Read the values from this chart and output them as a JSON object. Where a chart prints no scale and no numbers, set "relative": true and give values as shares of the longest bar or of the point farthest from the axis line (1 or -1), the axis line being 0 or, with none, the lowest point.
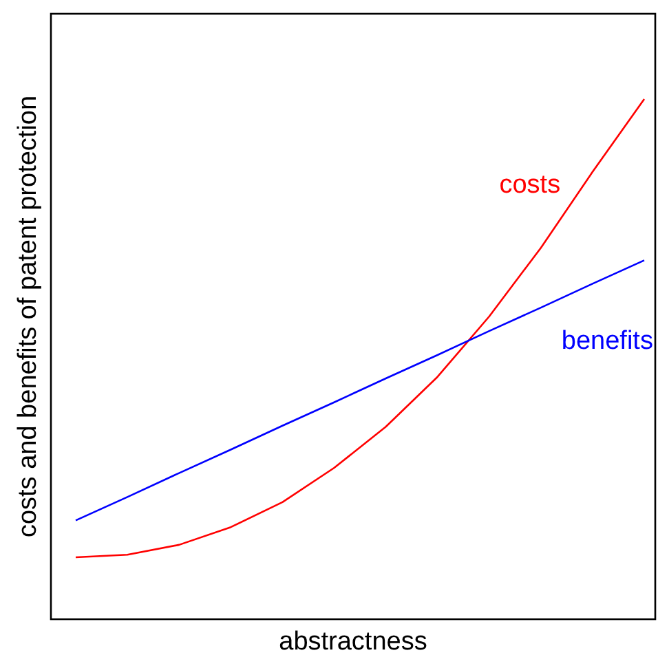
{
  "chart_data": {
    "type": "line",
    "relative": true,
    "xlabel": "abstractness",
    "ylabel": "costs and benefits of patent protection",
    "categories": [
      null,
      null,
      null,
      null,
      null,
      null,
      null,
      null,
      null,
      null,
      null,
      null
    ],
    "legend": false,
    "marker": "none",
    "line_style": "solid",
    "series": [
      {
        "name": "costs",
        "color": "#ff0000",
        "values": [
          0.119,
          0.124,
          0.143,
          0.177,
          0.225,
          0.291,
          0.37,
          0.466,
          0.582,
          0.714,
          0.86,
          1
        ]
      },
      {
        "name": "benefits",
        "color": "#0000ff",
        "values": [
          0.19,
          0.235,
          0.281,
          0.326,
          0.372,
          0.417,
          0.463,
          0.508,
          0.554,
          0.599,
          0.645,
          0.69
        ]
      }
    ]
  }
}
